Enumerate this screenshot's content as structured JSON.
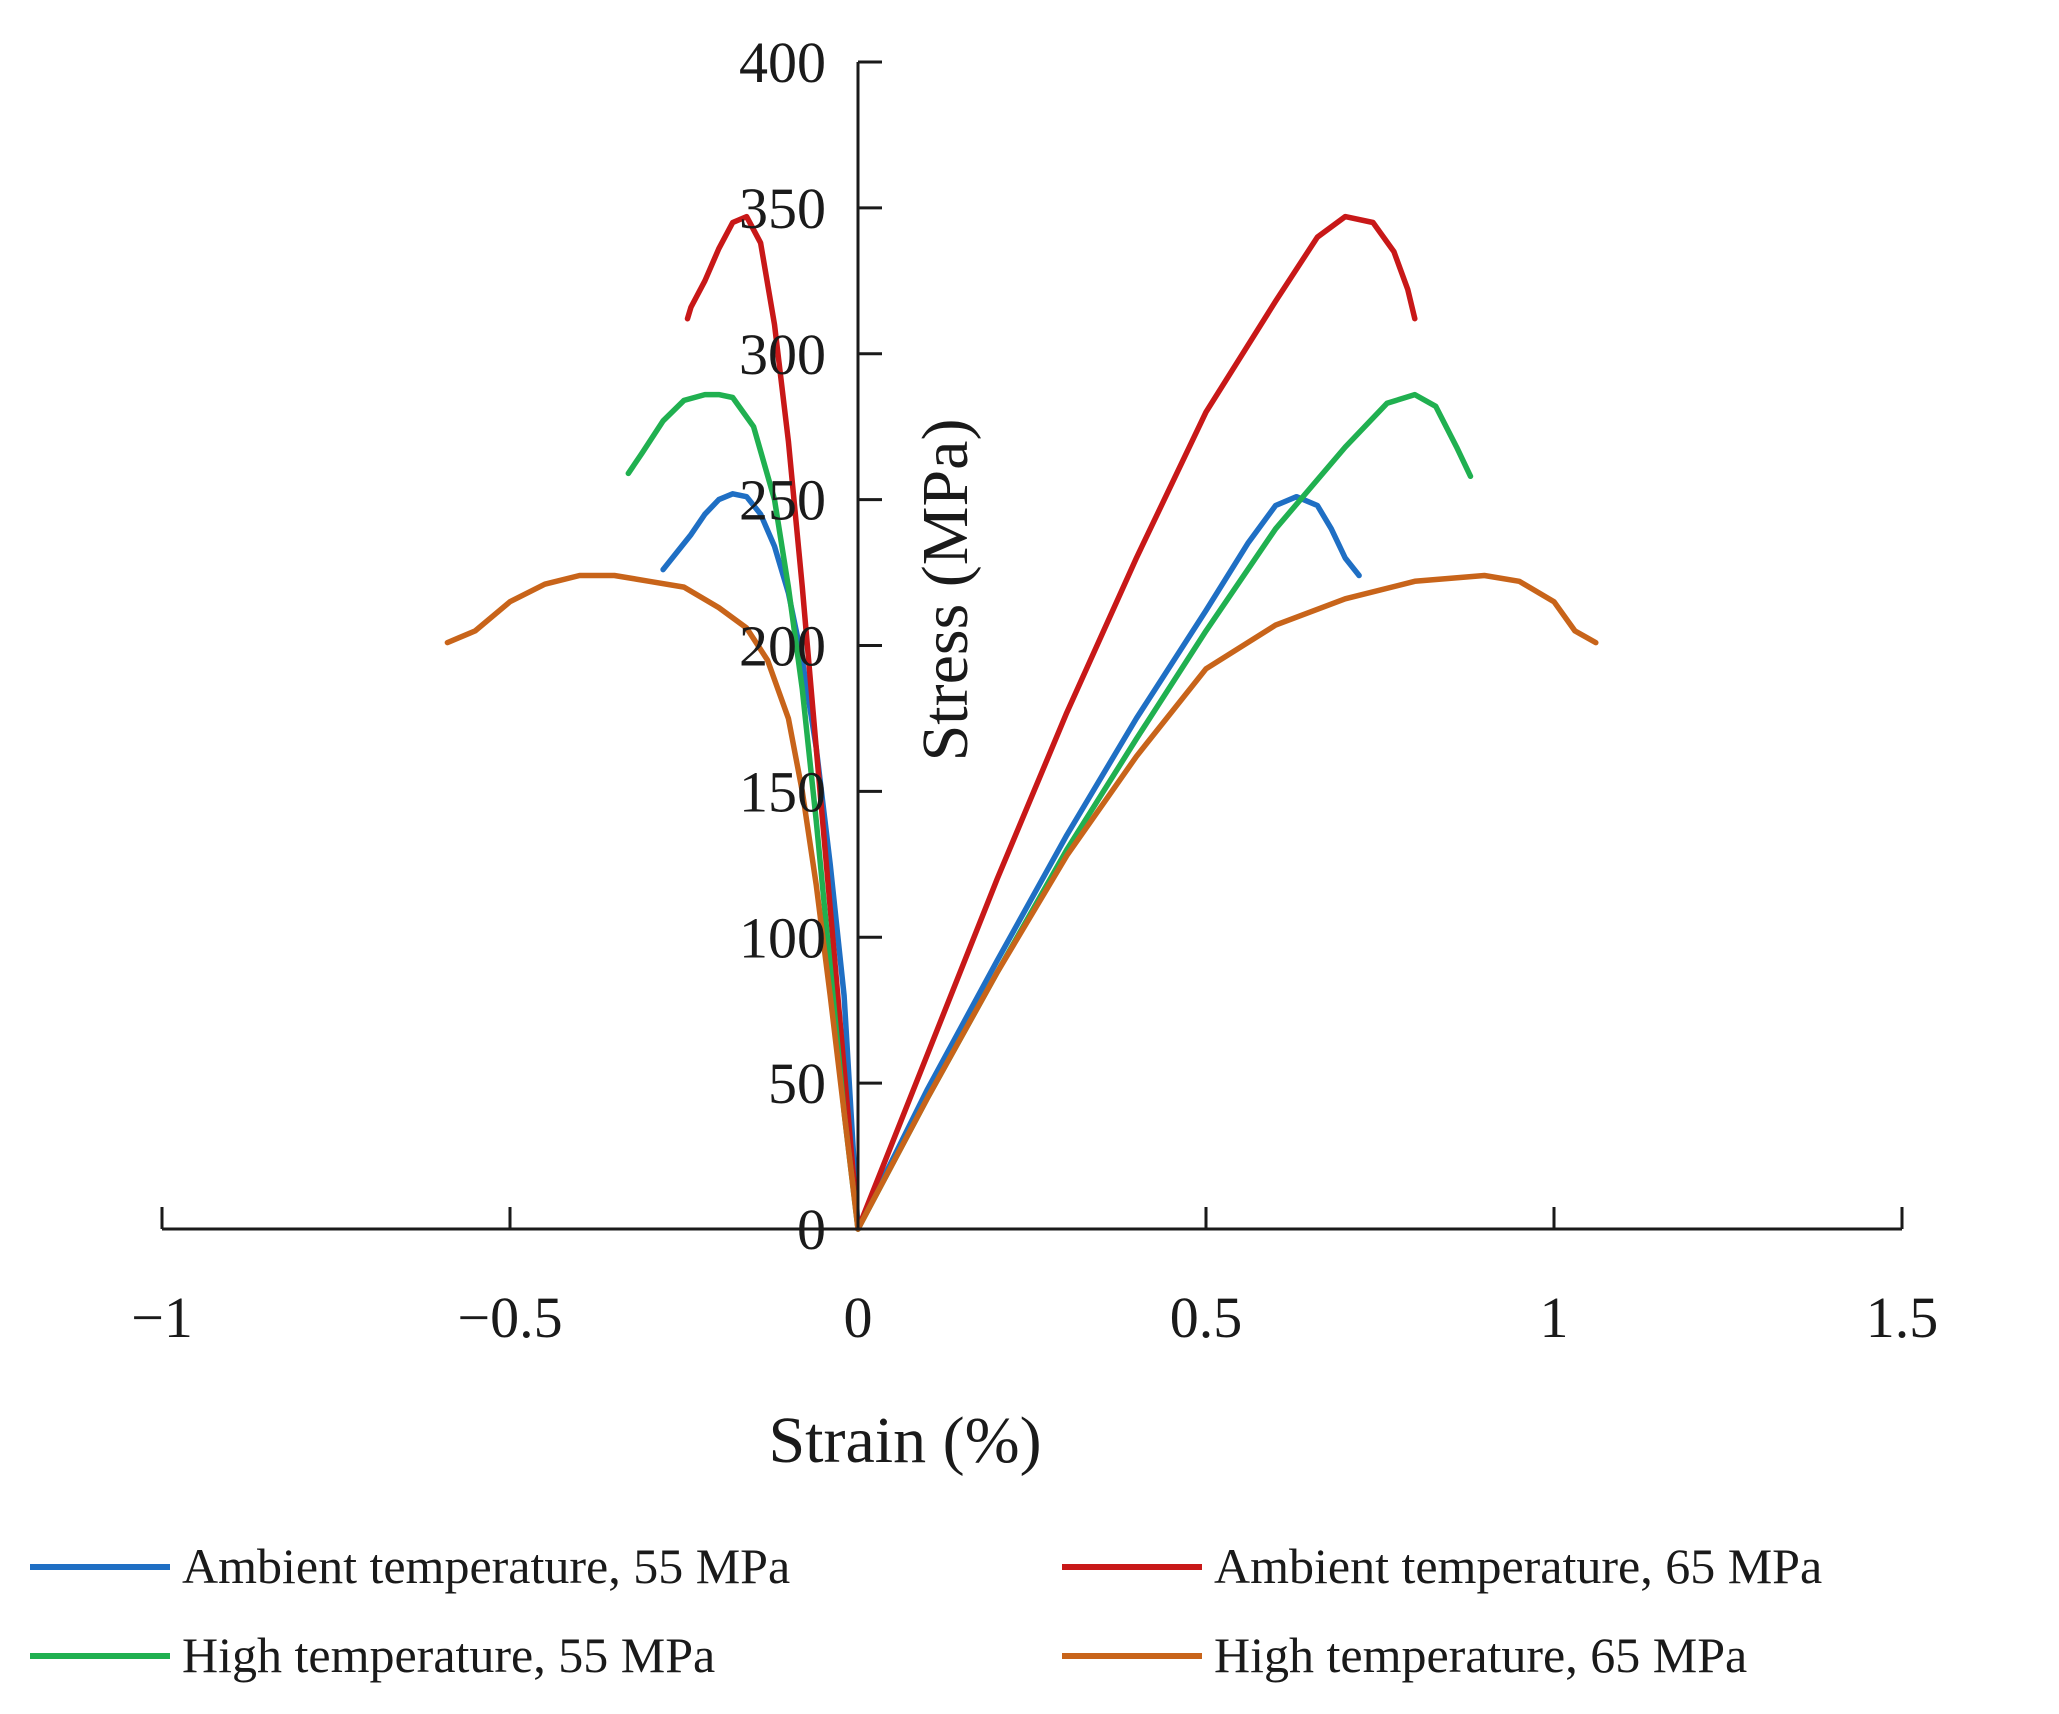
{
  "chart_data": {
    "type": "line",
    "title": "",
    "xlabel": "Strain (%)",
    "ylabel": "Stress (MPa)",
    "xlim": [
      -1,
      1.5
    ],
    "ylim": [
      0,
      400
    ],
    "xticks": [
      -1,
      -0.5,
      0,
      0.5,
      1,
      1.5
    ],
    "xtick_labels": [
      "−1",
      "−0.5",
      "0",
      "0.5",
      "1",
      "1.5"
    ],
    "yticks": [
      0,
      50,
      100,
      150,
      200,
      250,
      300,
      350,
      400
    ],
    "ytick_labels": [
      "0",
      "50",
      "100",
      "150",
      "200",
      "250",
      "300",
      "350",
      "400"
    ],
    "grid": false,
    "legend_position": "bottom",
    "series": [
      {
        "name": "Ambient temperature, 55 MPa",
        "color": "#1f6fc4",
        "negative_branch": [
          [
            0,
            0
          ],
          [
            -0.01,
            40
          ],
          [
            -0.02,
            80
          ],
          [
            -0.04,
            125
          ],
          [
            -0.06,
            165
          ],
          [
            -0.08,
            195
          ],
          [
            -0.1,
            218
          ],
          [
            -0.12,
            234
          ],
          [
            -0.14,
            245
          ],
          [
            -0.16,
            251
          ],
          [
            -0.18,
            252
          ],
          [
            -0.2,
            250
          ],
          [
            -0.22,
            245
          ],
          [
            -0.24,
            238
          ],
          [
            -0.26,
            232
          ],
          [
            -0.28,
            226
          ]
        ],
        "positive_branch": [
          [
            0,
            0
          ],
          [
            0.1,
            48
          ],
          [
            0.2,
            92
          ],
          [
            0.3,
            135
          ],
          [
            0.4,
            175
          ],
          [
            0.5,
            212
          ],
          [
            0.56,
            235
          ],
          [
            0.6,
            248
          ],
          [
            0.63,
            251
          ],
          [
            0.66,
            248
          ],
          [
            0.68,
            240
          ],
          [
            0.7,
            230
          ],
          [
            0.72,
            224
          ]
        ]
      },
      {
        "name": "Ambient temperature, 65 MPa",
        "color": "#c81818",
        "negative_branch": [
          [
            0,
            0
          ],
          [
            -0.02,
            55
          ],
          [
            -0.04,
            110
          ],
          [
            -0.06,
            165
          ],
          [
            -0.08,
            220
          ],
          [
            -0.1,
            270
          ],
          [
            -0.12,
            310
          ],
          [
            -0.14,
            338
          ],
          [
            -0.16,
            347
          ],
          [
            -0.18,
            345
          ],
          [
            -0.2,
            336
          ],
          [
            -0.22,
            325
          ],
          [
            -0.24,
            316
          ],
          [
            -0.245,
            312
          ]
        ],
        "positive_branch": [
          [
            0,
            0
          ],
          [
            0.1,
            60
          ],
          [
            0.2,
            120
          ],
          [
            0.3,
            177
          ],
          [
            0.4,
            230
          ],
          [
            0.5,
            280
          ],
          [
            0.6,
            318
          ],
          [
            0.66,
            340
          ],
          [
            0.7,
            347
          ],
          [
            0.74,
            345
          ],
          [
            0.77,
            335
          ],
          [
            0.79,
            322
          ],
          [
            0.8,
            312
          ]
        ]
      },
      {
        "name": "High temperature, 55 MPa",
        "color": "#20b050",
        "negative_branch": [
          [
            0,
            0
          ],
          [
            -0.02,
            40
          ],
          [
            -0.04,
            90
          ],
          [
            -0.06,
            140
          ],
          [
            -0.08,
            185
          ],
          [
            -0.1,
            220
          ],
          [
            -0.12,
            250
          ],
          [
            -0.15,
            275
          ],
          [
            -0.18,
            285
          ],
          [
            -0.2,
            286
          ],
          [
            -0.22,
            286
          ],
          [
            -0.25,
            284
          ],
          [
            -0.28,
            277
          ],
          [
            -0.31,
            266
          ],
          [
            -0.33,
            259
          ]
        ],
        "positive_branch": [
          [
            0,
            0
          ],
          [
            0.1,
            45
          ],
          [
            0.2,
            88
          ],
          [
            0.3,
            130
          ],
          [
            0.4,
            168
          ],
          [
            0.5,
            205
          ],
          [
            0.6,
            240
          ],
          [
            0.7,
            268
          ],
          [
            0.76,
            283
          ],
          [
            0.8,
            286
          ],
          [
            0.83,
            282
          ],
          [
            0.86,
            268
          ],
          [
            0.88,
            258
          ]
        ]
      },
      {
        "name": "High temperature, 65 MPa",
        "color": "#c8641a",
        "negative_branch": [
          [
            0,
            0
          ],
          [
            -0.02,
            40
          ],
          [
            -0.04,
            80
          ],
          [
            -0.06,
            118
          ],
          [
            -0.08,
            150
          ],
          [
            -0.1,
            175
          ],
          [
            -0.13,
            195
          ],
          [
            -0.16,
            206
          ],
          [
            -0.2,
            213
          ],
          [
            -0.25,
            220
          ],
          [
            -0.3,
            222
          ],
          [
            -0.35,
            224
          ],
          [
            -0.4,
            224
          ],
          [
            -0.45,
            221
          ],
          [
            -0.5,
            215
          ],
          [
            -0.55,
            205
          ],
          [
            -0.59,
            201
          ]
        ],
        "positive_branch": [
          [
            0,
            0
          ],
          [
            0.1,
            45
          ],
          [
            0.2,
            88
          ],
          [
            0.3,
            128
          ],
          [
            0.4,
            162
          ],
          [
            0.5,
            192
          ],
          [
            0.6,
            207
          ],
          [
            0.7,
            216
          ],
          [
            0.8,
            222
          ],
          [
            0.9,
            224
          ],
          [
            0.95,
            222
          ],
          [
            1.0,
            215
          ],
          [
            1.03,
            205
          ],
          [
            1.06,
            201
          ]
        ]
      }
    ]
  }
}
